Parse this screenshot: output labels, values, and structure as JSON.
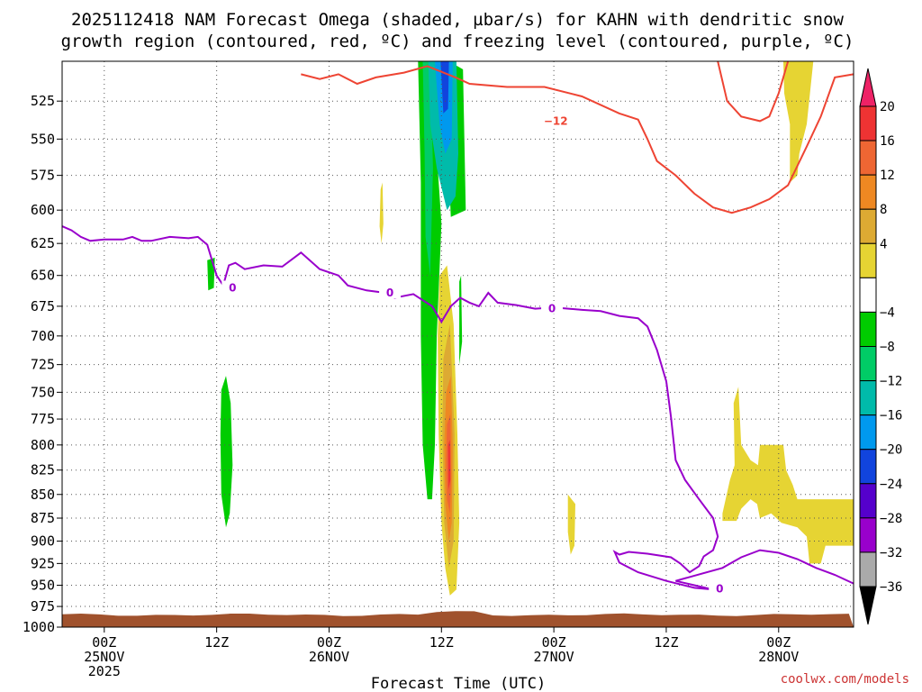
{
  "chart_data": {
    "type": "heatmap",
    "title_lines": [
      "2025112418 NAM Forecast Omega (shaded, µbar/s) for KAHN with dendritic snow",
      "growth region (contoured, red, ºC) and freezing level (contoured, purple, ºC)"
    ],
    "xlabel": "Forecast Time (UTC)",
    "credit": "coolwx.com/models",
    "x_range_hours": [
      -4.5,
      80.0
    ],
    "x_ticks": [
      {
        "hour": 0,
        "lines": [
          "00Z",
          "25NOV",
          "2025"
        ]
      },
      {
        "hour": 12,
        "lines": [
          "12Z"
        ]
      },
      {
        "hour": 24,
        "lines": [
          "00Z",
          "26NOV"
        ]
      },
      {
        "hour": 36,
        "lines": [
          "12Z"
        ]
      },
      {
        "hour": 48,
        "lines": [
          "00Z",
          "27NOV"
        ]
      },
      {
        "hour": 60,
        "lines": [
          "12Z"
        ]
      },
      {
        "hour": 72,
        "lines": [
          "00Z",
          "28NOV"
        ]
      }
    ],
    "y_scale": "log-pressure",
    "y_range_hpa": [
      500,
      1000
    ],
    "y_ticks": [
      "525",
      "550",
      "575",
      "600",
      "625",
      "650",
      "675",
      "700",
      "725",
      "750",
      "775",
      "800",
      "825",
      "850",
      "875",
      "900",
      "925",
      "950",
      "975",
      "1000"
    ],
    "colorbar": {
      "labels": [
        "20",
        "16",
        "12",
        "8",
        "4",
        "−4",
        "−8",
        "−12",
        "−16",
        "−20",
        "−24",
        "−28",
        "−32",
        "−36"
      ],
      "colors_top_to_bottom": [
        "#ee2266",
        "#ee3333",
        "#ee6633",
        "#ee8822",
        "#ddaa33",
        "#e6d433",
        "#ffffff",
        "#00cc00",
        "#00cc66",
        "#00bbaa",
        "#0099ee",
        "#1144dd",
        "#5500cc",
        "#9900cc",
        "#aaaaaa",
        "#000000"
      ]
    },
    "contour_labels": {
      "snow_growth": "−12",
      "freezing_level": "0"
    },
    "freezing_level_0C": [
      [
        -4.5,
        612
      ],
      [
        -3.5,
        615
      ],
      [
        -2.5,
        620
      ],
      [
        -1.5,
        623
      ],
      [
        0,
        622
      ],
      [
        2,
        622
      ],
      [
        3,
        620
      ],
      [
        4,
        623
      ],
      [
        5,
        623
      ],
      [
        7,
        620
      ],
      [
        9,
        621
      ],
      [
        10,
        620
      ],
      [
        11,
        626
      ],
      [
        12,
        650
      ],
      [
        12.7,
        658
      ],
      [
        13.3,
        642
      ],
      [
        14,
        640
      ],
      [
        15,
        645
      ],
      [
        17,
        642
      ],
      [
        19,
        643
      ],
      [
        21,
        632
      ],
      [
        23,
        645
      ],
      [
        25,
        650
      ],
      [
        26,
        658
      ],
      [
        28,
        662
      ],
      [
        30,
        664
      ],
      [
        31,
        668
      ],
      [
        33,
        665
      ],
      [
        34,
        670
      ],
      [
        35,
        675
      ],
      [
        36,
        688
      ],
      [
        37,
        675
      ],
      [
        38,
        668
      ],
      [
        39,
        672
      ],
      [
        40,
        675
      ],
      [
        41,
        664
      ],
      [
        42,
        672
      ],
      [
        44,
        674
      ],
      [
        46,
        677
      ],
      [
        48,
        676
      ],
      [
        51,
        678
      ],
      [
        53,
        679
      ],
      [
        55,
        683
      ],
      [
        57,
        685
      ],
      [
        58,
        692
      ],
      [
        59,
        712
      ],
      [
        60,
        740
      ],
      [
        60.5,
        773
      ],
      [
        61,
        815
      ],
      [
        62,
        835
      ],
      [
        63.5,
        855
      ],
      [
        65,
        875
      ],
      [
        65.5,
        895
      ],
      [
        65,
        910
      ],
      [
        64,
        917
      ],
      [
        63.5,
        928
      ],
      [
        62.5,
        935
      ],
      [
        61.5,
        925
      ],
      [
        60.5,
        918
      ],
      [
        58,
        914
      ],
      [
        56,
        912
      ],
      [
        55,
        915
      ],
      [
        54.5,
        912
      ],
      [
        55,
        924
      ],
      [
        57,
        935
      ],
      [
        60,
        945
      ],
      [
        63,
        953
      ],
      [
        65,
        955
      ],
      [
        63,
        950
      ],
      [
        61,
        945
      ],
      [
        66,
        930
      ],
      [
        68,
        918
      ],
      [
        70,
        910
      ],
      [
        72,
        913
      ],
      [
        74,
        920
      ],
      [
        76,
        930
      ],
      [
        78,
        938
      ],
      [
        80,
        948
      ]
    ],
    "snow_growth_minus12C": [
      [
        21,
        508
      ],
      [
        23,
        511
      ],
      [
        25,
        508
      ],
      [
        27,
        514
      ],
      [
        29,
        510
      ],
      [
        32,
        507
      ],
      [
        34.5,
        503
      ],
      [
        37.5,
        510
      ],
      [
        39,
        514
      ],
      [
        43,
        516
      ],
      [
        47,
        516
      ],
      [
        51,
        522
      ],
      [
        55,
        533
      ],
      [
        57,
        537
      ],
      [
        58,
        550
      ],
      [
        59,
        565
      ],
      [
        61,
        575
      ],
      [
        63,
        588
      ],
      [
        65,
        598
      ],
      [
        67,
        602
      ],
      [
        69,
        598
      ],
      [
        71,
        592
      ],
      [
        73,
        582
      ],
      [
        75,
        555
      ],
      [
        76.5,
        535
      ],
      [
        78,
        510
      ],
      [
        80,
        508
      ]
    ],
    "snow_growth_minus12C_lobe": [
      [
        65.5,
        500
      ],
      [
        66.5,
        525
      ],
      [
        68,
        535
      ],
      [
        70,
        538
      ],
      [
        71,
        535
      ],
      [
        72,
        520
      ],
      [
        73,
        500
      ]
    ],
    "omega_regions": [
      {
        "value": -4,
        "polygon": [
          [
            11,
            638
          ],
          [
            11.8,
            636
          ],
          [
            11.7,
            660
          ],
          [
            11.1,
            662
          ]
        ]
      },
      {
        "value": -4,
        "polygon": [
          [
            12.5,
            748
          ],
          [
            13,
            735
          ],
          [
            13.5,
            760
          ],
          [
            13.7,
            820
          ],
          [
            13.4,
            870
          ],
          [
            13,
            885
          ],
          [
            12.5,
            850
          ],
          [
            12.4,
            790
          ]
        ]
      },
      {
        "value": -4,
        "polygon": [
          [
            33.5,
            500
          ],
          [
            35.2,
            500
          ],
          [
            35.5,
            560
          ],
          [
            36,
            610
          ],
          [
            35.5,
            700
          ],
          [
            35.3,
            800
          ],
          [
            35,
            855
          ],
          [
            34.5,
            855
          ],
          [
            34,
            800
          ],
          [
            33.8,
            700
          ],
          [
            33.8,
            580
          ]
        ]
      },
      {
        "value": -8,
        "polygon": [
          [
            34,
            500
          ],
          [
            34.8,
            500
          ],
          [
            35.1,
            570
          ],
          [
            34.8,
            650
          ],
          [
            34.3,
            620
          ],
          [
            34.2,
            560
          ]
        ]
      },
      {
        "value": -4,
        "polygon": [
          [
            36.8,
            500
          ],
          [
            38.3,
            505
          ],
          [
            38.6,
            600
          ],
          [
            37,
            605
          ],
          [
            36.7,
            560
          ]
        ]
      },
      {
        "value": -4,
        "polygon": [
          [
            37.9,
            655
          ],
          [
            38.1,
            650
          ],
          [
            38.2,
            705
          ],
          [
            37.9,
            725
          ]
        ]
      },
      {
        "value": -12,
        "polygon": [
          [
            34.6,
            500
          ],
          [
            37.6,
            500
          ],
          [
            37.8,
            560
          ],
          [
            37.5,
            590
          ],
          [
            36.6,
            600
          ],
          [
            35.5,
            570
          ],
          [
            34.8,
            540
          ]
        ]
      },
      {
        "value": -16,
        "polygon": [
          [
            35.3,
            500
          ],
          [
            37.2,
            500
          ],
          [
            37.1,
            550
          ],
          [
            36.4,
            560
          ],
          [
            35.8,
            540
          ]
        ]
      },
      {
        "value": -20,
        "polygon": [
          [
            35.9,
            500
          ],
          [
            36.8,
            500
          ],
          [
            36.7,
            530
          ],
          [
            36.2,
            533
          ]
        ]
      },
      {
        "value": 4,
        "polygon": [
          [
            29.5,
            585
          ],
          [
            29.7,
            580
          ],
          [
            29.8,
            610
          ],
          [
            29.6,
            625
          ],
          [
            29.4,
            612
          ]
        ]
      },
      {
        "value": 4,
        "polygon": [
          [
            35.8,
            650
          ],
          [
            36.6,
            642
          ],
          [
            37.3,
            690
          ],
          [
            37.7,
            790
          ],
          [
            37.9,
            880
          ],
          [
            37.6,
            955
          ],
          [
            36.9,
            962
          ],
          [
            36.4,
            930
          ],
          [
            36,
            880
          ],
          [
            35.7,
            790
          ],
          [
            35.6,
            700
          ]
        ]
      },
      {
        "value": 8,
        "polygon": [
          [
            36.2,
            720
          ],
          [
            36.9,
            690
          ],
          [
            37.4,
            790
          ],
          [
            37.3,
            900
          ],
          [
            36.8,
            930
          ],
          [
            36.3,
            880
          ],
          [
            36.1,
            790
          ]
        ]
      },
      {
        "value": 12,
        "polygon": [
          [
            36.5,
            750
          ],
          [
            37,
            735
          ],
          [
            37.2,
            800
          ],
          [
            37.1,
            880
          ],
          [
            36.8,
            900
          ],
          [
            36.4,
            860
          ],
          [
            36.3,
            800
          ]
        ]
      },
      {
        "value": 16,
        "polygon": [
          [
            36.6,
            780
          ],
          [
            36.95,
            770
          ],
          [
            37.05,
            830
          ],
          [
            36.9,
            870
          ],
          [
            36.6,
            855
          ],
          [
            36.5,
            815
          ]
        ]
      },
      {
        "value": 20,
        "polygon": [
          [
            36.7,
            800
          ],
          [
            36.9,
            795
          ],
          [
            36.95,
            835
          ],
          [
            36.75,
            845
          ]
        ]
      },
      {
        "value": 4,
        "polygon": [
          [
            49.5,
            850
          ],
          [
            50.3,
            860
          ],
          [
            50.2,
            905
          ],
          [
            49.8,
            915
          ],
          [
            49.5,
            890
          ]
        ]
      },
      {
        "value": 4,
        "polygon": [
          [
            66,
            870
          ],
          [
            66.8,
            835
          ],
          [
            67.3,
            820
          ],
          [
            67.2,
            760
          ],
          [
            67.7,
            745
          ],
          [
            68,
            800
          ],
          [
            69,
            815
          ],
          [
            69.8,
            820
          ],
          [
            70,
            800
          ],
          [
            72.5,
            800
          ],
          [
            72.8,
            825
          ],
          [
            73.5,
            840
          ],
          [
            74,
            855
          ],
          [
            76,
            855
          ],
          [
            80,
            855
          ],
          [
            80,
            905
          ],
          [
            77,
            905
          ],
          [
            76.5,
            925
          ],
          [
            75.3,
            925
          ],
          [
            75,
            895
          ],
          [
            74,
            885
          ],
          [
            72.3,
            880
          ],
          [
            71.2,
            870
          ],
          [
            70,
            875
          ],
          [
            69.7,
            860
          ],
          [
            69,
            855
          ],
          [
            68,
            865
          ],
          [
            67.5,
            878
          ],
          [
            66,
            878
          ]
        ]
      },
      {
        "value": 4,
        "polygon": [
          [
            72.5,
            500
          ],
          [
            75.7,
            500
          ],
          [
            75,
            540
          ],
          [
            74.2,
            560
          ],
          [
            74,
            575
          ],
          [
            73.2,
            580
          ],
          [
            73.2,
            540
          ],
          [
            72.6,
            520
          ]
        ]
      }
    ]
  }
}
